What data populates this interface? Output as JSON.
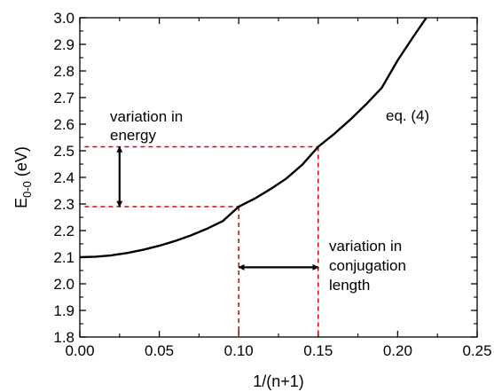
{
  "chart_data": {
    "type": "line",
    "xlabel": "1/(n+1)",
    "ylabel": {
      "main": "E",
      "subscript": "0-0",
      "unit": " (eV)"
    },
    "xlim": [
      0.0,
      0.25
    ],
    "ylim": [
      1.8,
      3.0
    ],
    "xticks": [
      "0.00",
      "0.05",
      "0.10",
      "0.15",
      "0.20",
      "0.25"
    ],
    "yticks": [
      "1.8",
      "1.9",
      "2.0",
      "2.1",
      "2.2",
      "2.3",
      "2.4",
      "2.5",
      "2.6",
      "2.7",
      "2.8",
      "2.9",
      "3.0"
    ],
    "grid": false,
    "series": [
      {
        "name": "eq. (4)",
        "color": "#000000",
        "x": [
          0.0,
          0.01,
          0.02,
          0.03,
          0.04,
          0.05,
          0.06,
          0.07,
          0.08,
          0.09,
          0.1,
          0.11,
          0.12,
          0.13,
          0.14,
          0.15,
          0.16,
          0.17,
          0.18,
          0.19,
          0.2,
          0.21,
          0.218
        ],
        "y": [
          2.1,
          2.102,
          2.107,
          2.116,
          2.128,
          2.143,
          2.161,
          2.182,
          2.207,
          2.236,
          2.29,
          2.32,
          2.356,
          2.396,
          2.448,
          2.515,
          2.563,
          2.616,
          2.674,
          2.737,
          2.84,
          2.93,
          3.0
        ]
      }
    ],
    "reference_lines": {
      "color": "#e00000",
      "style": "dashed",
      "points": [
        {
          "x": 0.1,
          "y": 2.29
        },
        {
          "x": 0.15,
          "y": 2.515
        }
      ]
    },
    "annotations": {
      "energy_label": [
        "variation in",
        "energy"
      ],
      "conjugation_label": [
        "variation in",
        "conjugation",
        "length"
      ],
      "equation_label": "eq. (4)",
      "energy_arrow": {
        "x": 0.025,
        "y_from": 2.29,
        "y_to": 2.515
      },
      "conjugation_arrow": {
        "y": 2.062,
        "x_from": 0.1,
        "x_to": 0.15
      }
    }
  }
}
